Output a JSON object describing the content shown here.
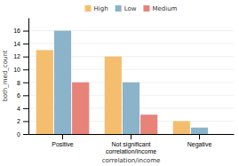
{
  "chart_data": {
    "type": "bar",
    "categories": [
      "Positive",
      "Not significant\ncorrelation/income",
      "Negative"
    ],
    "series": [
      {
        "name": "High",
        "color": "#F5BE6E",
        "values": [
          13,
          12,
          2
        ]
      },
      {
        "name": "Low",
        "color": "#8BB4CA",
        "values": [
          16,
          8,
          1
        ]
      },
      {
        "name": "Medium",
        "color": "#E8837A",
        "values": [
          8,
          3,
          0
        ]
      }
    ],
    "xlabel": "correlation/income",
    "ylabel": "both_med_count",
    "ylim": [
      0,
      18
    ],
    "yticks": [
      0,
      2,
      4,
      6,
      8,
      10,
      12,
      14,
      16
    ],
    "grid": true,
    "legend": "top"
  }
}
